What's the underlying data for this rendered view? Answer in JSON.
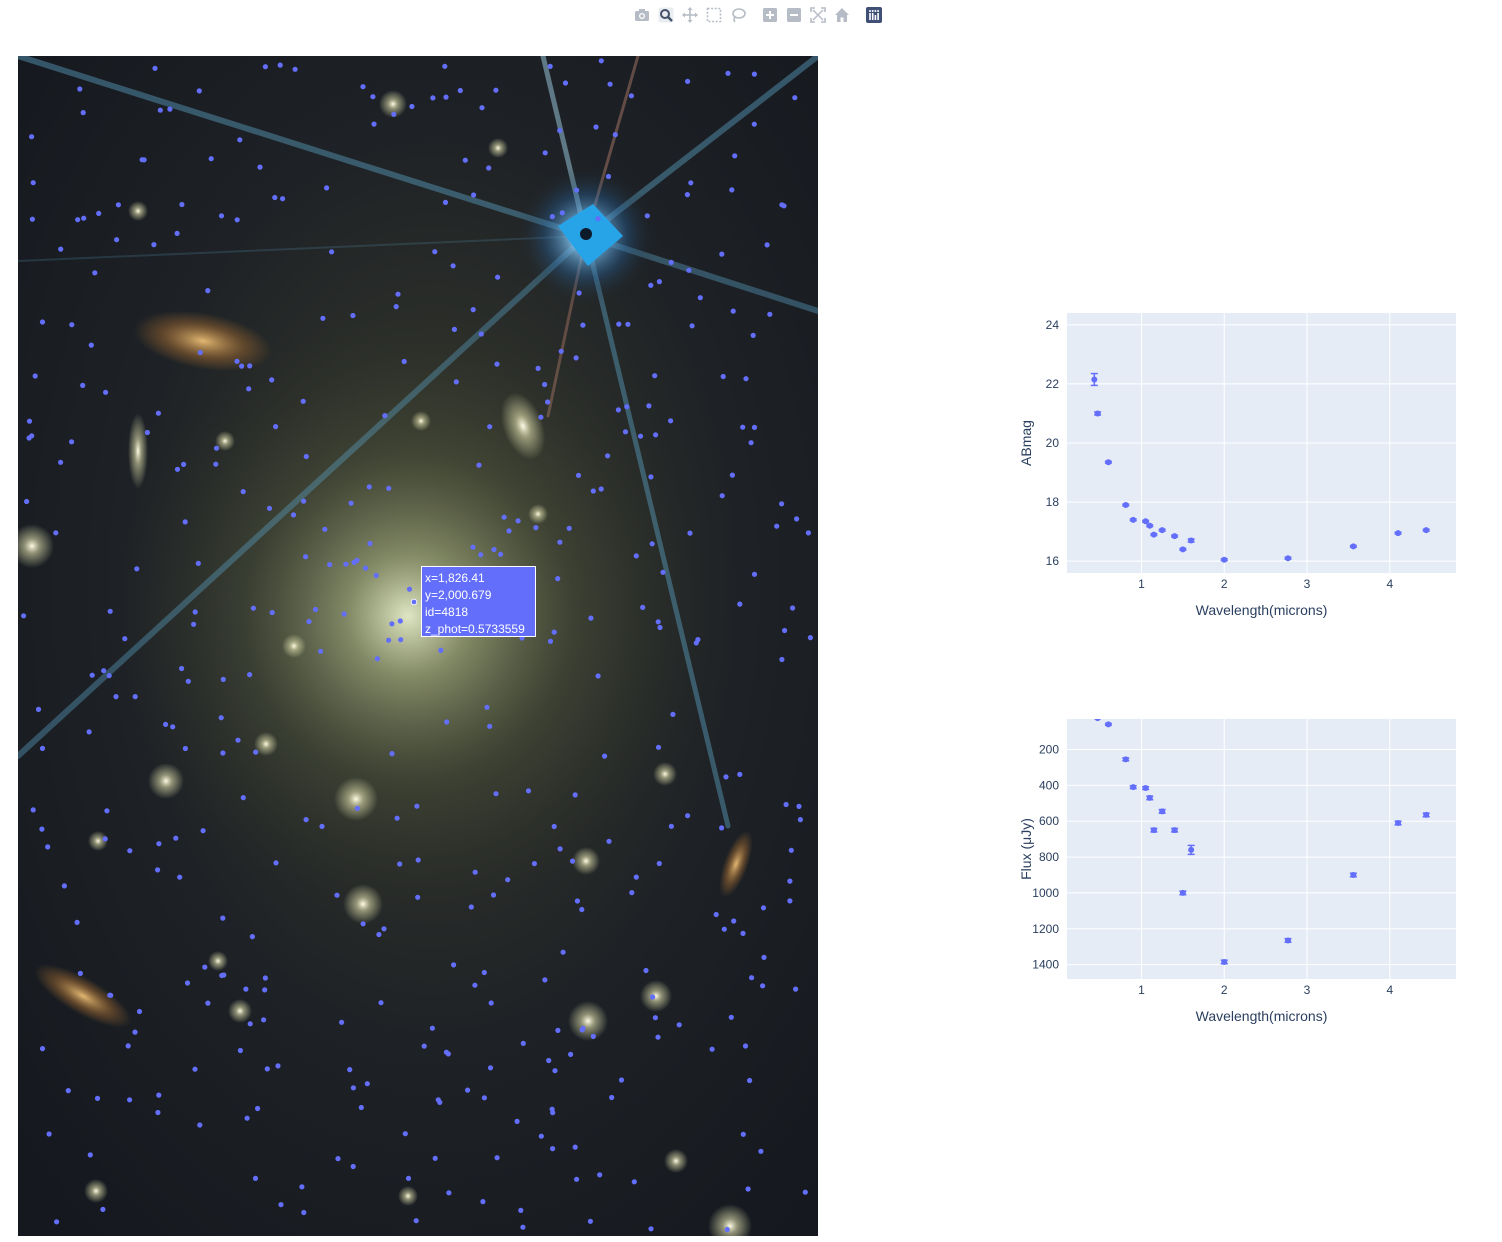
{
  "toolbar": {
    "buttons": [
      {
        "icon": "camera-icon"
      },
      {
        "icon": "zoom-icon"
      },
      {
        "icon": "pan-icon"
      },
      {
        "icon": "box-select-icon"
      },
      {
        "icon": "lasso-select-icon"
      },
      {
        "icon": "zoom-in-icon"
      },
      {
        "icon": "zoom-out-icon"
      },
      {
        "icon": "autoscale-icon"
      },
      {
        "icon": "reset-axes-icon"
      },
      {
        "icon": "plotly-logo-icon"
      }
    ]
  },
  "colors": {
    "marker": "#636efa",
    "plot_bg": "#e5ecf6",
    "grid": "#ffffff",
    "text": "#2a3f5f"
  },
  "hover": {
    "x_text": "x=1,826.41",
    "y_text": "y=2,000.679",
    "id_text": "id=4818",
    "z_text": "z_phot=0.5733559"
  },
  "chart_data": [
    {
      "type": "scatter",
      "title": "",
      "xlabel": "Wavelength(microns)",
      "ylabel": "ABmag",
      "xlim": [
        0.1,
        4.8
      ],
      "ylim": [
        24.4,
        15.6
      ],
      "y_reversed": true,
      "grid": true,
      "xticks": [
        1,
        2,
        3,
        4
      ],
      "yticks": [
        16,
        18,
        20,
        22,
        24
      ],
      "x": [
        0.43,
        0.47,
        0.6,
        0.81,
        0.9,
        1.05,
        1.1,
        1.15,
        1.25,
        1.4,
        1.5,
        1.6,
        2.0,
        2.77,
        3.56,
        4.1,
        4.44
      ],
      "y": [
        22.15,
        21.0,
        19.35,
        17.9,
        17.4,
        17.35,
        17.2,
        16.9,
        17.05,
        16.85,
        16.4,
        16.7,
        16.05,
        16.1,
        16.5,
        16.95,
        17.05
      ],
      "yerr": [
        0.2,
        0.05,
        0.03,
        0.03,
        0.03,
        0.03,
        0.03,
        0.03,
        0.03,
        0.03,
        0.03,
        0.05,
        0.03,
        0.03,
        0.03,
        0.03,
        0.03
      ]
    },
    {
      "type": "scatter",
      "title": "",
      "xlabel": "Wavelength(microns)",
      "ylabel": "Flux (μJy)",
      "xlim": [
        0.1,
        4.8
      ],
      "ylim": [
        30,
        1480
      ],
      "grid": true,
      "xticks": [
        1,
        2,
        3,
        4
      ],
      "yticks": [
        200,
        400,
        600,
        800,
        1000,
        1200,
        1400
      ],
      "x": [
        0.43,
        0.47,
        0.6,
        0.81,
        0.9,
        1.05,
        1.1,
        1.15,
        1.25,
        1.4,
        1.5,
        1.6,
        2.0,
        2.77,
        3.56,
        4.1,
        4.44
      ],
      "y": [
        5,
        25,
        60,
        255,
        410,
        415,
        470,
        650,
        545,
        650,
        1000,
        760,
        1385,
        1265,
        900,
        610,
        565
      ],
      "yerr": [
        3,
        3,
        5,
        8,
        8,
        8,
        10,
        10,
        10,
        10,
        10,
        25,
        10,
        10,
        10,
        10,
        10
      ]
    }
  ]
}
